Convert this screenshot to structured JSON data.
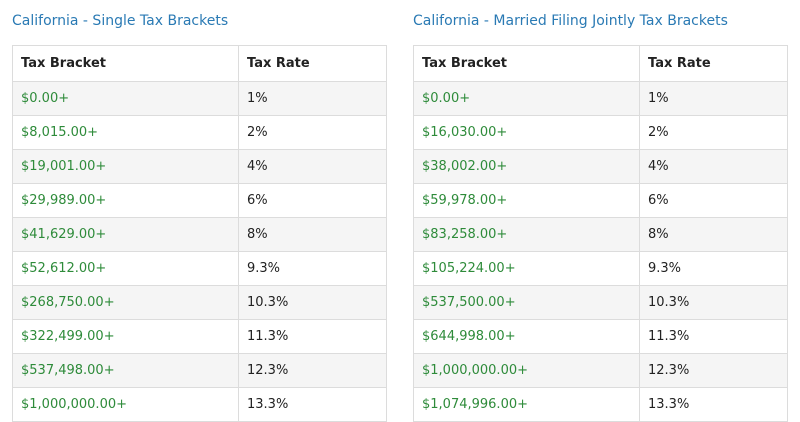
{
  "single": {
    "title": "California - Single Tax Brackets",
    "header_bracket": "Tax Bracket",
    "header_rate": "Tax Rate",
    "rows": [
      {
        "bracket": "$0.00+",
        "rate": "1%"
      },
      {
        "bracket": "$8,015.00+",
        "rate": "2%"
      },
      {
        "bracket": "$19,001.00+",
        "rate": "4%"
      },
      {
        "bracket": "$29,989.00+",
        "rate": "6%"
      },
      {
        "bracket": "$41,629.00+",
        "rate": "8%"
      },
      {
        "bracket": "$52,612.00+",
        "rate": "9.3%"
      },
      {
        "bracket": "$268,750.00+",
        "rate": "10.3%"
      },
      {
        "bracket": "$322,499.00+",
        "rate": "11.3%"
      },
      {
        "bracket": "$537,498.00+",
        "rate": "12.3%"
      },
      {
        "bracket": "$1,000,000.00+",
        "rate": "13.3%"
      }
    ]
  },
  "married": {
    "title": "California - Married Filing Jointly Tax Brackets",
    "header_bracket": "Tax Bracket",
    "header_rate": "Tax Rate",
    "rows": [
      {
        "bracket": "$0.00+",
        "rate": "1%"
      },
      {
        "bracket": "$16,030.00+",
        "rate": "2%"
      },
      {
        "bracket": "$38,002.00+",
        "rate": "4%"
      },
      {
        "bracket": "$59,978.00+",
        "rate": "6%"
      },
      {
        "bracket": "$83,258.00+",
        "rate": "8%"
      },
      {
        "bracket": "$105,224.00+",
        "rate": "9.3%"
      },
      {
        "bracket": "$537,500.00+",
        "rate": "10.3%"
      },
      {
        "bracket": "$644,998.00+",
        "rate": "11.3%"
      },
      {
        "bracket": "$1,000,000.00+",
        "rate": "12.3%"
      },
      {
        "bracket": "$1,074,996.00+",
        "rate": "13.3%"
      }
    ]
  },
  "colors": {
    "title": "#2a7ab4",
    "bracket_value": "#2e8b3a",
    "stripe": "#f5f5f5",
    "border": "#dcdcdc"
  }
}
